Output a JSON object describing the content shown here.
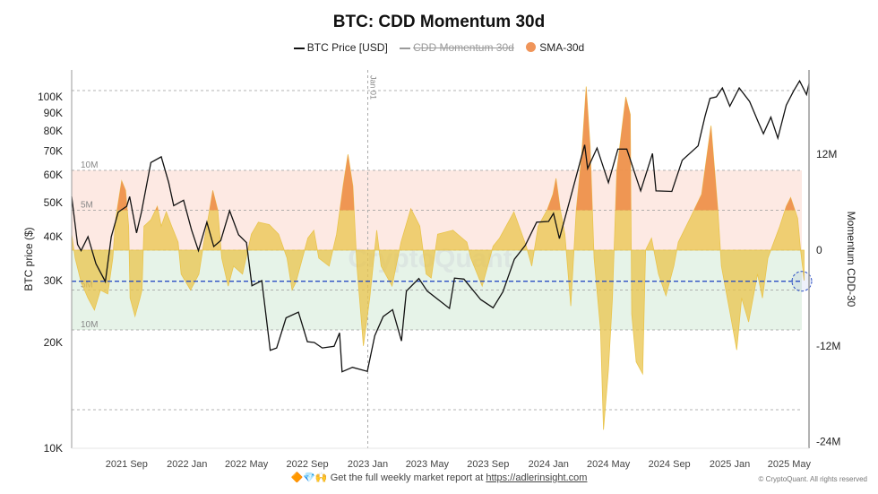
{
  "title": "BTC: CDD Momentum 30d",
  "legend": [
    {
      "label": "BTC Price [USD]",
      "style": "line",
      "color": "#111111"
    },
    {
      "label": "CDD Momentum 30d",
      "style": "line-disabled",
      "color": "#9a9a9a"
    },
    {
      "label": "SMA-30d",
      "style": "dot",
      "color": "#f0955a"
    }
  ],
  "footer": {
    "emoji": "🔶💎🙌",
    "text": "Get the full weekly market report at",
    "link": "https://adlerinsight.com"
  },
  "copyright": "© CryptoQuant. All rights reserved",
  "watermark": "CryptoQuant",
  "colors": {
    "price": "#111111",
    "positive_fill": "#e9c44c",
    "high_fill": "#ef8c4e",
    "upper_band": "#fde9e3",
    "lower_band": "#e6f3e8",
    "reference_line": "#2b4fc4"
  },
  "chart_data": {
    "type": "line",
    "title": "BTC: CDD Momentum 30d",
    "x_tick_labels": [
      "2021 Sep",
      "2022 Jan",
      "2022 May",
      "2022 Sep",
      "2023 Jan",
      "2023 May",
      "2023 Sep",
      "2024 Jan",
      "2024 May",
      "2024 Sep",
      "2025 Jan",
      "2025 May"
    ],
    "x_ticks": [
      "2021-09-01",
      "2022-01-01",
      "2022-05-01",
      "2022-09-01",
      "2023-01-01",
      "2023-05-01",
      "2023-09-01",
      "2024-01-01",
      "2024-05-01",
      "2024-09-01",
      "2025-01-01",
      "2025-05-01"
    ],
    "xlim": [
      "2021-05-13",
      "2025-06-10"
    ],
    "vertical_marker": {
      "date": "2023-01-01",
      "label": "Jan 01"
    },
    "left_axis": {
      "label": "BTC price ($)",
      "scale": "log",
      "ylim": [
        10000,
        125000
      ],
      "ticks": [
        100000,
        90000,
        80000,
        70000,
        60000,
        50000,
        40000,
        30000,
        20000,
        10000
      ],
      "tick_labels": [
        "100K",
        "90K",
        "80K",
        "70K",
        "60K",
        "50K",
        "40K",
        "30K",
        "20K",
        "10K"
      ]
    },
    "right_axis": {
      "label": "Momentum CDD-30",
      "scale": "linear",
      "ylim": [
        -25000000,
        24000000
      ],
      "ticks": [
        12000000,
        0,
        -12000000,
        -24000000
      ],
      "tick_labels": [
        "12M",
        "0",
        "-12M",
        "-24M"
      ]
    },
    "grid_lines_right": [
      20000000,
      10000000,
      5000000,
      0,
      -5000000,
      -10000000,
      -20000000
    ],
    "bands": [
      {
        "from": 0,
        "to": 10000000,
        "color": "#fde9e3",
        "labels": [
          "10M",
          "5M"
        ],
        "label_values": [
          10000000,
          5000000
        ]
      },
      {
        "from": -10000000,
        "to": 0,
        "color": "#e6f3e8",
        "labels": [
          "5M",
          "10M"
        ],
        "label_values": [
          -5000000,
          -10000000
        ]
      }
    ],
    "high_threshold": 5000000,
    "reference_line": -3900000,
    "series": [
      {
        "name": "BTC Price [USD]",
        "axis": "left",
        "points": [
          [
            "2021-05-13",
            52000
          ],
          [
            "2021-05-25",
            38000
          ],
          [
            "2021-06-01",
            36500
          ],
          [
            "2021-06-15",
            40000
          ],
          [
            "2021-07-01",
            33500
          ],
          [
            "2021-07-20",
            29800
          ],
          [
            "2021-08-01",
            40000
          ],
          [
            "2021-08-15",
            47000
          ],
          [
            "2021-09-01",
            48800
          ],
          [
            "2021-09-07",
            52000
          ],
          [
            "2021-09-21",
            41000
          ],
          [
            "2021-10-01",
            47000
          ],
          [
            "2021-10-20",
            65000
          ],
          [
            "2021-11-10",
            67500
          ],
          [
            "2021-11-25",
            57000
          ],
          [
            "2021-12-05",
            49000
          ],
          [
            "2021-12-25",
            50800
          ],
          [
            "2022-01-10",
            41800
          ],
          [
            "2022-01-24",
            36500
          ],
          [
            "2022-02-10",
            44000
          ],
          [
            "2022-02-24",
            37500
          ],
          [
            "2022-03-10",
            39000
          ],
          [
            "2022-03-28",
            47400
          ],
          [
            "2022-04-15",
            40500
          ],
          [
            "2022-05-01",
            38500
          ],
          [
            "2022-05-12",
            29000
          ],
          [
            "2022-06-01",
            30000
          ],
          [
            "2022-06-18",
            19000
          ],
          [
            "2022-07-01",
            19300
          ],
          [
            "2022-07-20",
            23500
          ],
          [
            "2022-08-14",
            24400
          ],
          [
            "2022-09-01",
            20100
          ],
          [
            "2022-09-15",
            20000
          ],
          [
            "2022-10-01",
            19300
          ],
          [
            "2022-10-25",
            19500
          ],
          [
            "2022-11-05",
            21300
          ],
          [
            "2022-11-10",
            16500
          ],
          [
            "2022-12-01",
            17000
          ],
          [
            "2022-12-31",
            16550
          ],
          [
            "2023-01-15",
            20900
          ],
          [
            "2023-02-01",
            23700
          ],
          [
            "2023-02-20",
            24800
          ],
          [
            "2023-03-10",
            20200
          ],
          [
            "2023-03-20",
            28000
          ],
          [
            "2023-04-14",
            30400
          ],
          [
            "2023-05-01",
            28000
          ],
          [
            "2023-06-15",
            25000
          ],
          [
            "2023-06-25",
            30500
          ],
          [
            "2023-07-14",
            30300
          ],
          [
            "2023-08-17",
            26500
          ],
          [
            "2023-09-11",
            25100
          ],
          [
            "2023-10-01",
            27900
          ],
          [
            "2023-10-24",
            34500
          ],
          [
            "2023-11-15",
            37800
          ],
          [
            "2023-12-08",
            44000
          ],
          [
            "2024-01-01",
            44200
          ],
          [
            "2024-01-11",
            46600
          ],
          [
            "2024-01-23",
            39500
          ],
          [
            "2024-02-15",
            52000
          ],
          [
            "2024-03-14",
            73000
          ],
          [
            "2024-03-20",
            62500
          ],
          [
            "2024-04-08",
            71500
          ],
          [
            "2024-05-01",
            57000
          ],
          [
            "2024-05-20",
            71000
          ],
          [
            "2024-06-07",
            71000
          ],
          [
            "2024-07-05",
            54000
          ],
          [
            "2024-07-29",
            69000
          ],
          [
            "2024-08-05",
            54000
          ],
          [
            "2024-09-06",
            53800
          ],
          [
            "2024-09-27",
            66000
          ],
          [
            "2024-10-29",
            72500
          ],
          [
            "2024-11-12",
            88000
          ],
          [
            "2024-11-22",
            99000
          ],
          [
            "2024-12-05",
            100000
          ],
          [
            "2024-12-17",
            106000
          ],
          [
            "2025-01-01",
            94000
          ],
          [
            "2025-01-20",
            106000
          ],
          [
            "2025-02-10",
            97000
          ],
          [
            "2025-02-28",
            84500
          ],
          [
            "2025-03-10",
            78500
          ],
          [
            "2025-03-25",
            87500
          ],
          [
            "2025-04-08",
            76300
          ],
          [
            "2025-04-25",
            94700
          ],
          [
            "2025-05-10",
            104000
          ],
          [
            "2025-05-22",
            111000
          ],
          [
            "2025-06-05",
            101500
          ],
          [
            "2025-06-10",
            109000
          ]
        ]
      },
      {
        "name": "SMA-30d",
        "axis": "right",
        "unit": "M",
        "points": [
          [
            "2021-05-13",
            2
          ],
          [
            "2021-05-20",
            -1
          ],
          [
            "2021-06-01",
            -4
          ],
          [
            "2021-06-15",
            -6
          ],
          [
            "2021-06-28",
            -7.5
          ],
          [
            "2021-07-10",
            -5
          ],
          [
            "2021-07-25",
            -5.5
          ],
          [
            "2021-08-04",
            -1
          ],
          [
            "2021-08-10",
            4
          ],
          [
            "2021-08-22",
            8.7
          ],
          [
            "2021-08-30",
            7.5
          ],
          [
            "2021-09-05",
            3
          ],
          [
            "2021-09-08",
            -6
          ],
          [
            "2021-09-18",
            -8.3
          ],
          [
            "2021-09-28",
            -6
          ],
          [
            "2021-10-02",
            -5
          ],
          [
            "2021-10-06",
            3
          ],
          [
            "2021-10-20",
            3.8
          ],
          [
            "2021-11-02",
            5.5
          ],
          [
            "2021-11-10",
            3
          ],
          [
            "2021-11-20",
            4.8
          ],
          [
            "2021-12-01",
            3
          ],
          [
            "2021-12-14",
            1
          ],
          [
            "2021-12-20",
            -3
          ],
          [
            "2022-01-08",
            -5
          ],
          [
            "2022-01-25",
            -3
          ],
          [
            "2022-02-04",
            1
          ],
          [
            "2022-02-14",
            4.5
          ],
          [
            "2022-02-22",
            7.5
          ],
          [
            "2022-03-04",
            5
          ],
          [
            "2022-03-12",
            -1
          ],
          [
            "2022-03-25",
            -4.5
          ],
          [
            "2022-04-05",
            -2
          ],
          [
            "2022-04-23",
            -3
          ],
          [
            "2022-05-11",
            2
          ],
          [
            "2022-05-25",
            3.5
          ],
          [
            "2022-06-16",
            3.2
          ],
          [
            "2022-07-05",
            2
          ],
          [
            "2022-07-22",
            -1
          ],
          [
            "2022-08-01",
            -5
          ],
          [
            "2022-08-09",
            -4
          ],
          [
            "2022-09-02",
            1.5
          ],
          [
            "2022-09-14",
            2.5
          ],
          [
            "2022-09-24",
            -1
          ],
          [
            "2022-10-15",
            -2
          ],
          [
            "2022-10-30",
            2
          ],
          [
            "2022-11-12",
            8
          ],
          [
            "2022-11-22",
            12
          ],
          [
            "2022-12-02",
            8
          ],
          [
            "2022-12-10",
            -2
          ],
          [
            "2022-12-23",
            -12
          ],
          [
            "2023-01-05",
            -6
          ],
          [
            "2023-01-19",
            2.5
          ],
          [
            "2023-01-28",
            -2
          ],
          [
            "2023-02-19",
            -4.5
          ],
          [
            "2023-03-09",
            1
          ],
          [
            "2023-03-29",
            5.2
          ],
          [
            "2023-04-16",
            3
          ],
          [
            "2023-04-29",
            -3
          ],
          [
            "2023-05-09",
            -3.5
          ],
          [
            "2023-05-22",
            2
          ],
          [
            "2023-06-22",
            2.5
          ],
          [
            "2023-07-20",
            1
          ],
          [
            "2023-07-28",
            -1
          ],
          [
            "2023-08-20",
            -4.5
          ],
          [
            "2023-09-11",
            0.5
          ],
          [
            "2023-09-24",
            1.5
          ],
          [
            "2023-10-23",
            4.8
          ],
          [
            "2023-11-17",
            0.5
          ],
          [
            "2023-11-28",
            -2
          ],
          [
            "2023-12-11",
            3
          ],
          [
            "2023-12-29",
            5
          ],
          [
            "2024-01-10",
            7
          ],
          [
            "2024-01-16",
            9
          ],
          [
            "2024-01-25",
            5
          ],
          [
            "2024-02-03",
            2
          ],
          [
            "2024-02-15",
            -7
          ],
          [
            "2024-02-26",
            5
          ],
          [
            "2024-03-08",
            12
          ],
          [
            "2024-03-17",
            20.5
          ],
          [
            "2024-03-25",
            13
          ],
          [
            "2024-04-02",
            -1
          ],
          [
            "2024-04-15",
            -10
          ],
          [
            "2024-04-21",
            -22.5
          ],
          [
            "2024-05-01",
            -15
          ],
          [
            "2024-05-09",
            -6
          ],
          [
            "2024-05-18",
            10
          ],
          [
            "2024-06-05",
            19.2
          ],
          [
            "2024-06-14",
            17
          ],
          [
            "2024-06-17",
            -8
          ],
          [
            "2024-06-26",
            -14
          ],
          [
            "2024-07-09",
            -15.5
          ],
          [
            "2024-07-15",
            0
          ],
          [
            "2024-07-27",
            1.5
          ],
          [
            "2024-08-10",
            -3
          ],
          [
            "2024-08-25",
            -5.7
          ],
          [
            "2024-09-10",
            -2
          ],
          [
            "2024-09-19",
            1
          ],
          [
            "2024-10-13",
            4
          ],
          [
            "2024-11-05",
            7
          ],
          [
            "2024-11-24",
            15.6
          ],
          [
            "2024-12-08",
            5
          ],
          [
            "2024-12-15",
            -2
          ],
          [
            "2025-01-02",
            -8
          ],
          [
            "2025-01-15",
            -12.5
          ],
          [
            "2025-01-25",
            -6
          ],
          [
            "2025-02-08",
            -9
          ],
          [
            "2025-02-26",
            -3
          ],
          [
            "2025-03-08",
            -6
          ],
          [
            "2025-03-19",
            -1
          ],
          [
            "2025-04-12",
            3
          ],
          [
            "2025-04-25",
            5.5
          ],
          [
            "2025-05-04",
            6.6
          ],
          [
            "2025-05-18",
            4
          ],
          [
            "2025-05-24",
            0
          ],
          [
            "2025-05-31",
            -3.8
          ]
        ]
      }
    ],
    "legend_position": "top-center",
    "grid": true
  }
}
